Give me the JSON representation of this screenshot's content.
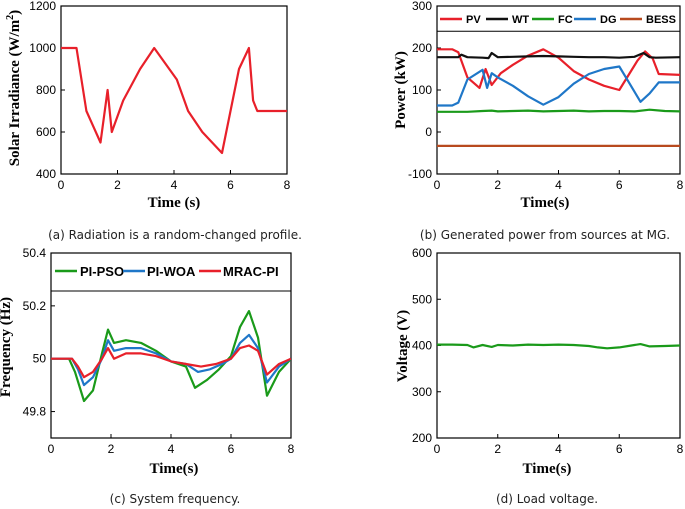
{
  "chart_data": [
    {
      "id": "a",
      "type": "line",
      "caption": "(a) Radiation is a random-changed profile.",
      "xlabel": "Time (s)",
      "ylabel": "Solar Irradiance (W/m",
      "ylabel_sup": "2",
      "ylabel_close": ")",
      "xlim": [
        0,
        8
      ],
      "ylim": [
        400,
        1200
      ],
      "xticks": [
        0,
        2,
        4,
        6,
        8
      ],
      "yticks": [
        400,
        600,
        800,
        1000,
        1200
      ],
      "series": [
        {
          "name": "Irradiance",
          "color": "#e8202a",
          "x": [
            0,
            0.55,
            0.9,
            1.4,
            1.65,
            1.8,
            2.2,
            2.8,
            3.3,
            4.1,
            4.5,
            5.0,
            5.7,
            6.3,
            6.65,
            6.8,
            6.95,
            8.0
          ],
          "y": [
            1000,
            1000,
            700,
            550,
            800,
            600,
            750,
            900,
            1000,
            850,
            700,
            600,
            500,
            900,
            1000,
            750,
            700,
            700
          ]
        }
      ]
    },
    {
      "id": "b",
      "type": "line",
      "caption": "(b) Generated power from sources at MG.",
      "xlabel": "Time(s)",
      "ylabel": "Power (kW)",
      "xlim": [
        0,
        8
      ],
      "ylim": [
        -100,
        300
      ],
      "xticks": [
        0,
        2,
        4,
        6,
        8
      ],
      "yticks": [
        -100,
        0,
        100,
        200,
        300
      ],
      "legend_position": "top",
      "series": [
        {
          "name": "PV",
          "color": "#e8202a",
          "x": [
            0,
            0.5,
            0.7,
            1.0,
            1.4,
            1.6,
            1.8,
            2.1,
            2.5,
            3.0,
            3.5,
            4.0,
            4.5,
            5.0,
            5.5,
            6.0,
            6.6,
            6.85,
            7.1,
            7.3,
            8.0
          ],
          "y": [
            197,
            197,
            190,
            130,
            105,
            150,
            112,
            140,
            160,
            182,
            197,
            177,
            145,
            125,
            110,
            100,
            170,
            192,
            175,
            138,
            136
          ]
        },
        {
          "name": "WT",
          "color": "#111111",
          "x": [
            0,
            0.7,
            0.8,
            1.0,
            1.5,
            1.7,
            1.8,
            2.0,
            2.5,
            3.0,
            3.5,
            4.0,
            4.5,
            5.0,
            5.5,
            6.0,
            6.5,
            6.8,
            7.0,
            7.2,
            8.0
          ],
          "y": [
            178,
            178,
            184,
            178,
            177,
            176,
            188,
            178,
            179,
            180,
            181,
            180,
            179,
            178,
            178,
            177,
            179,
            188,
            178,
            177,
            178
          ]
        },
        {
          "name": "FC",
          "color": "#1a9a1a",
          "x": [
            0,
            1.0,
            1.5,
            1.8,
            2.0,
            2.5,
            3.0,
            3.5,
            4.0,
            4.5,
            5.0,
            5.5,
            6.0,
            6.5,
            7.0,
            7.5,
            8.0
          ],
          "y": [
            48,
            48,
            50,
            51,
            49,
            50,
            51,
            49,
            50,
            51,
            49,
            50,
            50,
            49,
            53,
            50,
            49
          ]
        },
        {
          "name": "DG",
          "color": "#1f77c8",
          "x": [
            0,
            0.5,
            0.7,
            1.0,
            1.5,
            1.65,
            1.8,
            2.0,
            2.5,
            3.0,
            3.5,
            4.0,
            4.5,
            5.0,
            5.5,
            6.0,
            6.3,
            6.7,
            7.0,
            7.3,
            8.0
          ],
          "y": [
            63,
            63,
            70,
            125,
            148,
            105,
            140,
            130,
            110,
            85,
            65,
            83,
            115,
            138,
            150,
            156,
            120,
            72,
            92,
            118,
            118
          ]
        },
        {
          "name": "BESS",
          "color": "#b84a1e",
          "x": [
            0,
            8
          ],
          "y": [
            -33,
            -33
          ]
        }
      ]
    },
    {
      "id": "c",
      "type": "line",
      "caption": "(c) System frequency.",
      "xlabel": "Time(s)",
      "ylabel": "Frequency (Hz)",
      "xlim": [
        0,
        8
      ],
      "ylim": [
        49.7,
        50.4
      ],
      "xticks": [
        0,
        2,
        4,
        6,
        8
      ],
      "yticks": [
        49.8,
        50,
        50.2,
        50.4
      ],
      "legend_position": "top",
      "series": [
        {
          "name": "PI-PSO",
          "color": "#1a9a1a",
          "x": [
            0,
            0.6,
            0.8,
            1.1,
            1.4,
            1.7,
            1.9,
            2.1,
            2.5,
            3.0,
            3.5,
            4.0,
            4.5,
            4.8,
            5.2,
            5.6,
            6.0,
            6.3,
            6.6,
            6.9,
            7.2,
            7.6,
            8.0
          ],
          "y": [
            50.0,
            50.0,
            49.95,
            49.84,
            49.88,
            50.02,
            50.11,
            50.06,
            50.07,
            50.06,
            50.03,
            49.99,
            49.97,
            49.89,
            49.92,
            49.96,
            50.01,
            50.12,
            50.18,
            50.08,
            49.86,
            49.95,
            50.0
          ]
        },
        {
          "name": "PI-WOA",
          "color": "#1f77c8",
          "x": [
            0,
            0.7,
            0.9,
            1.1,
            1.4,
            1.7,
            1.9,
            2.1,
            2.5,
            3.0,
            3.5,
            4.0,
            4.5,
            4.9,
            5.3,
            5.7,
            6.0,
            6.3,
            6.6,
            6.9,
            7.2,
            7.6,
            8.0
          ],
          "y": [
            50.0,
            50.0,
            49.96,
            49.9,
            49.93,
            50.0,
            50.07,
            50.03,
            50.04,
            50.04,
            50.02,
            49.99,
            49.98,
            49.95,
            49.96,
            49.98,
            50.0,
            50.06,
            50.09,
            50.04,
            49.91,
            49.97,
            50.0
          ]
        },
        {
          "name": "MRAC-PI",
          "color": "#e8202a",
          "x": [
            0,
            0.7,
            0.9,
            1.1,
            1.4,
            1.7,
            1.9,
            2.1,
            2.5,
            3.0,
            3.5,
            4.0,
            4.5,
            5.0,
            5.5,
            6.0,
            6.3,
            6.6,
            6.9,
            7.2,
            7.6,
            8.0
          ],
          "y": [
            50.0,
            50.0,
            49.97,
            49.93,
            49.95,
            50.0,
            50.04,
            50.0,
            50.02,
            50.02,
            50.01,
            49.99,
            49.98,
            49.97,
            49.98,
            50.0,
            50.04,
            50.05,
            50.03,
            49.94,
            49.98,
            50.0
          ]
        }
      ]
    },
    {
      "id": "d",
      "type": "line",
      "caption": "(d) Load voltage.",
      "xlabel": "Time(s)",
      "ylabel": "Voltage (V)",
      "xlim": [
        0,
        8
      ],
      "ylim": [
        200,
        600
      ],
      "xticks": [
        0,
        2,
        4,
        6,
        8
      ],
      "yticks": [
        200,
        300,
        400,
        500,
        600
      ],
      "series": [
        {
          "name": "Voltage",
          "color": "#1a9a1a",
          "x": [
            0,
            0.5,
            1.0,
            1.2,
            1.5,
            1.8,
            2.0,
            2.5,
            3.0,
            3.5,
            4.0,
            4.5,
            5.0,
            5.3,
            5.6,
            6.0,
            6.4,
            6.7,
            7.0,
            7.5,
            8.0
          ],
          "y": [
            402,
            402,
            401,
            396,
            401,
            397,
            401,
            400,
            402,
            401,
            402,
            401,
            399,
            396,
            394,
            396,
            400,
            403,
            398,
            399,
            400
          ]
        }
      ]
    }
  ]
}
